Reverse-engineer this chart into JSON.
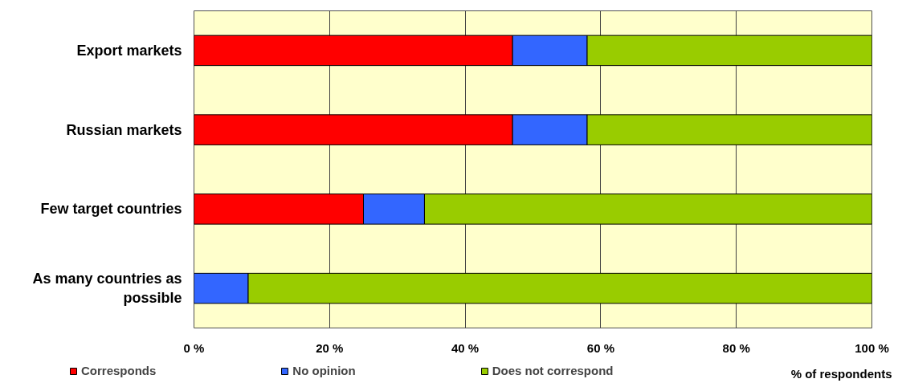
{
  "chart_data": {
    "type": "bar",
    "orientation": "horizontal",
    "stacked": true,
    "categories": [
      "Export markets",
      "Russian markets",
      "Few target countries",
      "As many countries as possible"
    ],
    "series": [
      {
        "name": "Corresponds",
        "color": "#ff0000",
        "values": [
          47,
          47,
          25,
          0
        ]
      },
      {
        "name": "No opinion",
        "color": "#3366ff",
        "values": [
          11,
          11,
          9,
          8
        ]
      },
      {
        "name": "Does not correspond",
        "color": "#99cc00",
        "values": [
          42,
          42,
          66,
          92
        ]
      }
    ],
    "xlabel": "% of respondents",
    "xlim": [
      0,
      100
    ],
    "xticks": [
      {
        "value": 0,
        "label": "0 %"
      },
      {
        "value": 20,
        "label": "20 %"
      },
      {
        "value": 40,
        "label": "40 %"
      },
      {
        "value": 60,
        "label": "60 %"
      },
      {
        "value": 80,
        "label": "80 %"
      },
      {
        "value": 100,
        "label": "100 %"
      }
    ],
    "grid": "x",
    "legend": "bottom"
  }
}
